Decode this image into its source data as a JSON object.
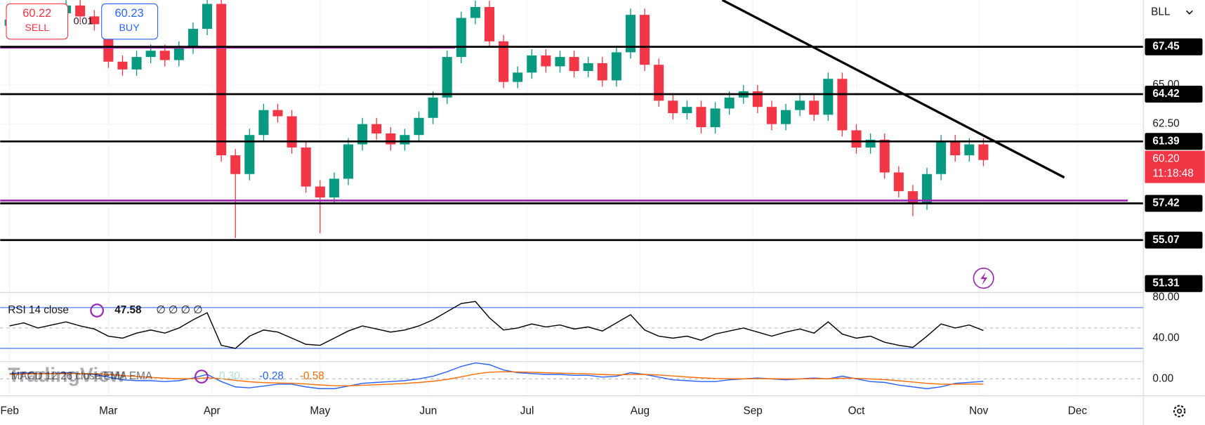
{
  "chart_data": {
    "type": "candlestick",
    "symbol": "BLL",
    "x": [
      0,
      3,
      6,
      9,
      12,
      15,
      18,
      21,
      24,
      27,
      30,
      33,
      36,
      39,
      42,
      45,
      48,
      51,
      54,
      57,
      60,
      63,
      66,
      69,
      72,
      75,
      78,
      81,
      84,
      87,
      90,
      93,
      96,
      99,
      102,
      105,
      108,
      111,
      114,
      117,
      120,
      123,
      126,
      129,
      132,
      135,
      138,
      141,
      144,
      147,
      150,
      153,
      156,
      159,
      162,
      165,
      168,
      171,
      174,
      177,
      180,
      183,
      186,
      189,
      192,
      195,
      198,
      201,
      204,
      207
    ],
    "open": [
      68.8,
      69.2,
      69.8,
      69.0,
      69.6,
      70.1,
      69.4,
      68.9,
      66.5,
      66.0,
      66.8,
      67.2,
      66.6,
      67.4,
      68.6,
      70.2,
      60.5,
      59.3,
      61.8,
      63.4,
      63.0,
      61.0,
      58.5,
      57.8,
      59.0,
      61.2,
      62.5,
      61.9,
      61.2,
      61.8,
      62.9,
      64.2,
      66.8,
      69.3,
      70.0,
      67.8,
      65.2,
      65.8,
      66.9,
      66.2,
      66.8,
      65.9,
      66.4,
      65.3,
      67.1,
      69.5,
      66.3,
      64.0,
      63.2,
      63.6,
      62.3,
      63.5,
      64.2,
      64.6,
      63.6,
      62.5,
      63.4,
      64.0,
      63.1,
      65.4,
      62.1,
      61.0,
      61.5,
      59.4,
      58.2,
      57.4,
      59.3,
      61.4,
      60.5,
      61.2
    ],
    "high": [
      69.6,
      70.2,
      70.2,
      70.0,
      70.5,
      70.5,
      69.8,
      69.3,
      66.9,
      67.2,
      67.6,
      67.6,
      67.8,
      69.0,
      70.6,
      70.6,
      60.9,
      62.2,
      63.8,
      63.8,
      63.4,
      61.4,
      58.9,
      59.4,
      61.6,
      62.9,
      62.9,
      62.3,
      62.2,
      63.3,
      64.6,
      67.2,
      69.7,
      70.4,
      70.4,
      68.2,
      66.2,
      67.3,
      67.3,
      67.2,
      67.2,
      66.8,
      66.8,
      67.5,
      69.9,
      69.9,
      66.7,
      64.4,
      64.0,
      64.0,
      63.9,
      64.6,
      65.0,
      65.0,
      64.0,
      63.8,
      64.4,
      64.4,
      65.8,
      65.8,
      62.5,
      61.9,
      61.9,
      59.8,
      58.6,
      59.7,
      61.8,
      61.8,
      61.6,
      61.6
    ],
    "low": [
      68.4,
      68.8,
      68.6,
      68.6,
      69.2,
      69.0,
      68.5,
      66.1,
      65.6,
      65.6,
      66.4,
      66.2,
      66.2,
      67.0,
      68.2,
      60.1,
      55.2,
      58.9,
      61.4,
      62.6,
      60.6,
      58.1,
      55.5,
      57.4,
      58.6,
      60.8,
      61.5,
      60.8,
      60.8,
      61.4,
      62.5,
      63.8,
      66.4,
      68.9,
      67.4,
      64.8,
      64.8,
      65.4,
      65.8,
      65.8,
      65.5,
      65.5,
      64.9,
      64.9,
      66.7,
      65.9,
      63.6,
      62.8,
      62.8,
      61.9,
      61.9,
      63.1,
      63.8,
      63.2,
      62.1,
      62.1,
      63.0,
      62.7,
      62.7,
      61.7,
      60.6,
      60.6,
      59.0,
      57.8,
      56.6,
      57.0,
      58.9,
      60.1,
      60.1,
      59.8
    ],
    "close": [
      69.2,
      69.8,
      69.0,
      69.6,
      70.1,
      69.4,
      68.9,
      66.5,
      66.0,
      66.8,
      67.2,
      66.6,
      67.4,
      68.6,
      70.2,
      60.5,
      59.3,
      61.8,
      63.4,
      63.0,
      61.0,
      58.5,
      57.8,
      59.0,
      61.2,
      62.5,
      61.9,
      61.2,
      61.8,
      62.9,
      64.2,
      66.8,
      69.3,
      70.0,
      67.8,
      65.2,
      65.8,
      66.9,
      66.2,
      66.8,
      65.9,
      66.4,
      65.3,
      67.1,
      69.5,
      66.3,
      64.0,
      63.2,
      63.6,
      62.3,
      63.5,
      64.2,
      64.6,
      63.6,
      62.5,
      63.4,
      64.0,
      63.1,
      65.4,
      62.1,
      61.0,
      61.5,
      59.4,
      58.2,
      57.4,
      59.3,
      61.4,
      60.5,
      61.2,
      60.2
    ],
    "up_color": "#089981",
    "down_color": "#f23645",
    "xlim": [
      -2,
      241
    ],
    "xticks": [
      {
        "value": 0,
        "label": "Feb"
      },
      {
        "value": 21,
        "label": "Mar"
      },
      {
        "value": 43,
        "label": "Apr"
      },
      {
        "value": 66,
        "label": "May"
      },
      {
        "value": 89,
        "label": "Jun"
      },
      {
        "value": 110,
        "label": "Jul"
      },
      {
        "value": 134,
        "label": "Aug"
      },
      {
        "value": 158,
        "label": "Sep"
      },
      {
        "value": 180,
        "label": "Oct"
      },
      {
        "value": 206,
        "label": "Nov"
      },
      {
        "value": 227,
        "label": "Dec"
      }
    ],
    "ylim": [
      51.74,
      70.45
    ],
    "yticks": [
      {
        "value": 62.5,
        "label": "62.50"
      },
      {
        "value": 65,
        "label": "65.00"
      }
    ],
    "levels": [
      67.45,
      64.42,
      61.39,
      57.42,
      55.07,
      51.31
    ],
    "level_color": "#000000",
    "zones": [
      {
        "value": 67.4,
        "x": [
          -2,
          94.7
        ]
      },
      {
        "value": 57.6,
        "x": [
          -2,
          237.7
        ]
      }
    ],
    "zone_color": "#9c27b0",
    "trendline": {
      "x": [
        151.5,
        224.2
      ],
      "y": [
        70.45,
        59.08
      ]
    },
    "last_price": {
      "value": 60.2,
      "label": "60.20",
      "countdown": "11:18:48"
    },
    "rsi": {
      "name": "RSI 14 close",
      "placeholders": "∅ ∅ ∅ ∅",
      "color": "#000000",
      "values": [
        52,
        55,
        50,
        53,
        56,
        52,
        49,
        42,
        40,
        45,
        48,
        45,
        50,
        58,
        65,
        33,
        30,
        42,
        48,
        46,
        40,
        34,
        33,
        40,
        47,
        52,
        49,
        46,
        48,
        52,
        58,
        66,
        74,
        76,
        60,
        48,
        50,
        54,
        51,
        53,
        49,
        51,
        47,
        55,
        63,
        48,
        42,
        40,
        42,
        38,
        44,
        47,
        50,
        46,
        42,
        46,
        49,
        45,
        56,
        44,
        40,
        42,
        36,
        33,
        31,
        42,
        54,
        50,
        53,
        47.58
      ],
      "ylim": [
        17.4,
        84.5
      ],
      "yticks": [
        {
          "value": 80,
          "label": "80.00"
        },
        {
          "value": 40,
          "label": "40.00"
        }
      ],
      "bands": [
        70,
        30
      ],
      "band_color": "#2962ff"
    },
    "macd": {
      "name": "MACD 12 26 close EMA EMA",
      "histogram_label": "0.30",
      "series": [
        {
          "name": "MACD",
          "color": "#2962ff",
          "values": [
            0.6,
            0.7,
            0.6,
            0.6,
            0.7,
            0.6,
            0.5,
            0.2,
            -0.1,
            -0.2,
            -0.2,
            -0.3,
            -0.2,
            0.1,
            0.5,
            -0.3,
            -0.9,
            -1.0,
            -0.8,
            -0.6,
            -0.6,
            -0.9,
            -1.1,
            -1.1,
            -0.8,
            -0.5,
            -0.4,
            -0.3,
            -0.2,
            0.0,
            0.3,
            0.8,
            1.4,
            1.8,
            1.6,
            1.0,
            0.7,
            0.6,
            0.5,
            0.5,
            0.4,
            0.4,
            0.2,
            0.3,
            0.7,
            0.5,
            0.2,
            -0.1,
            -0.2,
            -0.3,
            -0.3,
            -0.1,
            0.0,
            0.1,
            0.0,
            -0.1,
            0.0,
            0.1,
            0.0,
            0.3,
            0.0,
            -0.3,
            -0.4,
            -0.7,
            -0.9,
            -1.1,
            -0.9,
            -0.5,
            -0.4,
            -0.28
          ]
        },
        {
          "name": "Signal",
          "color": "#ff6d00",
          "values": [
            0.5,
            0.55,
            0.57,
            0.58,
            0.6,
            0.6,
            0.58,
            0.5,
            0.38,
            0.26,
            0.17,
            0.08,
            0.02,
            0.03,
            0.12,
            0.03,
            -0.16,
            -0.33,
            -0.42,
            -0.46,
            -0.49,
            -0.57,
            -0.68,
            -0.77,
            -0.78,
            -0.72,
            -0.66,
            -0.59,
            -0.51,
            -0.41,
            -0.27,
            -0.06,
            0.23,
            0.54,
            0.75,
            0.8,
            0.78,
            0.74,
            0.69,
            0.65,
            0.6,
            0.56,
            0.49,
            0.45,
            0.5,
            0.5,
            0.44,
            0.33,
            0.22,
            0.12,
            0.04,
            0.01,
            0.01,
            0.03,
            0.02,
            0.0,
            0.0,
            0.02,
            0.02,
            0.08,
            0.06,
            -0.01,
            -0.09,
            -0.21,
            -0.35,
            -0.5,
            -0.6,
            -0.6,
            -0.58,
            -0.58
          ]
        }
      ],
      "ylim": [
        -1.9,
        1.9
      ],
      "yticks": [
        {
          "value": 0,
          "label": "0.00"
        }
      ]
    }
  },
  "ui": {
    "sell_price": "60.22",
    "sell": "SELL",
    "buy_price": "60.23",
    "buy": "BUY",
    "spread": "0.01",
    "logo": "TradingView"
  }
}
